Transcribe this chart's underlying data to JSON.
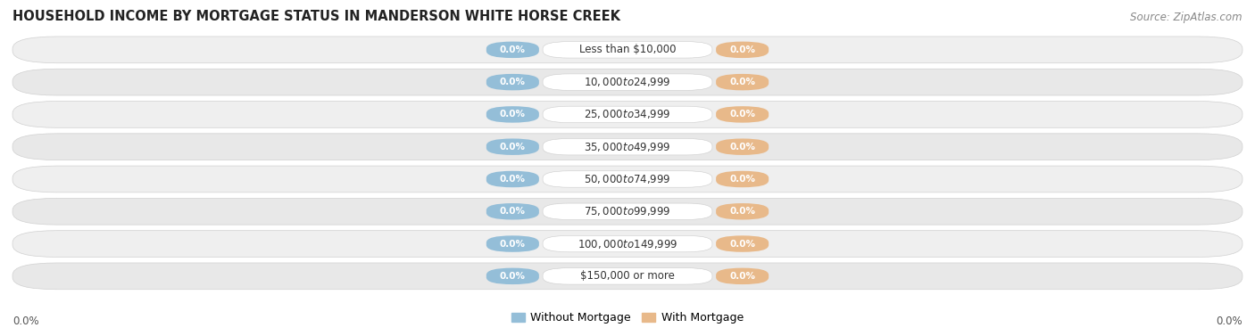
{
  "title": "HOUSEHOLD INCOME BY MORTGAGE STATUS IN MANDERSON WHITE HORSE CREEK",
  "source": "Source: ZipAtlas.com",
  "categories": [
    "Less than $10,000",
    "$10,000 to $24,999",
    "$25,000 to $34,999",
    "$35,000 to $49,999",
    "$50,000 to $74,999",
    "$75,000 to $99,999",
    "$100,000 to $149,999",
    "$150,000 or more"
  ],
  "without_mortgage": [
    0.0,
    0.0,
    0.0,
    0.0,
    0.0,
    0.0,
    0.0,
    0.0
  ],
  "with_mortgage": [
    0.0,
    0.0,
    0.0,
    0.0,
    0.0,
    0.0,
    0.0,
    0.0
  ],
  "without_mortgage_color": "#94bed8",
  "with_mortgage_color": "#e8b98a",
  "row_bg_color": "#efefef",
  "row_bg_alt_color": "#e8e8e8",
  "row_border_color": "#d0d0d0",
  "cat_box_color": "white",
  "cat_text_color": "#333333",
  "pct_text_color": "white",
  "legend_label_without": "Without Mortgage",
  "legend_label_with": "With Mortgage",
  "title_fontsize": 10.5,
  "source_fontsize": 8.5,
  "label_fontsize": 7.5,
  "category_fontsize": 8.5,
  "x_left_label": "0.0%",
  "x_right_label": "0.0%"
}
